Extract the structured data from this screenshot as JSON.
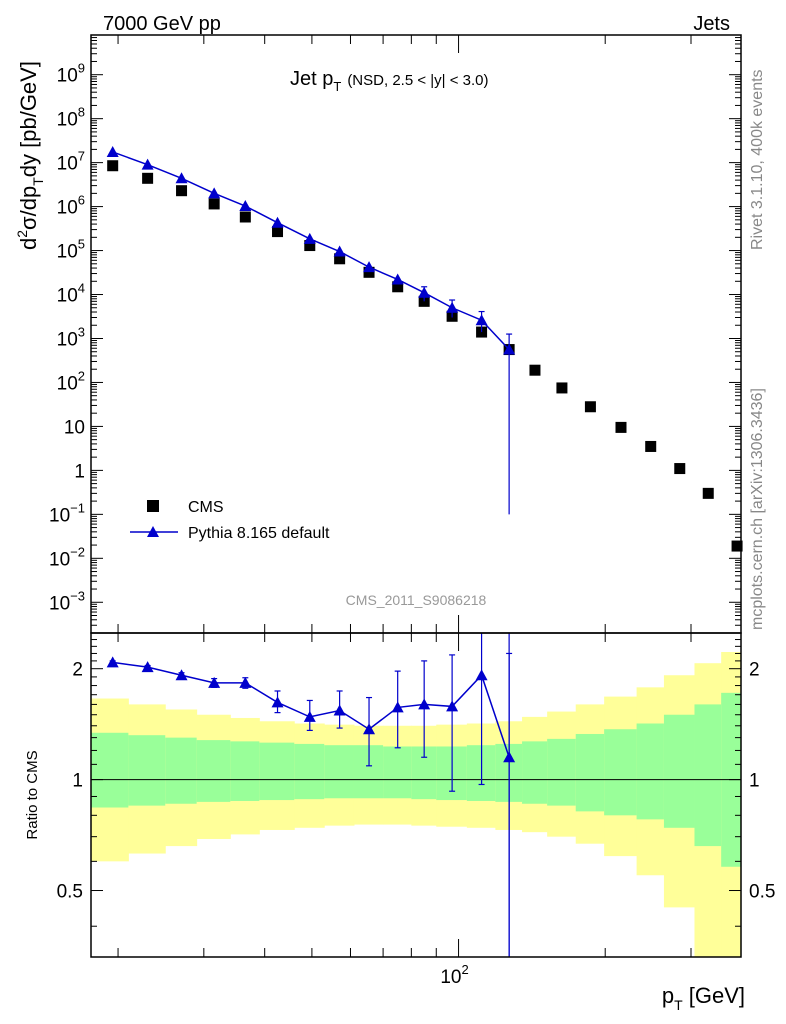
{
  "header": {
    "left": "7000 GeV pp",
    "right": "Jets"
  },
  "title": {
    "main": "Jet p",
    "main_sub": "T",
    "detail": "(NSD, 2.5 < |y| < 3.0)"
  },
  "side": {
    "rivet": "Rivet 3.1.10,  400k events",
    "site": "mcplots.cern.ch [arXiv:1306.3436]"
  },
  "watermark": "CMS_2011_S9086218",
  "ylabel": {
    "a": "d",
    "sup": "2",
    "b": "σ/dp",
    "sub": "T",
    "c": "dy [pb/GeV]"
  },
  "ratio_label": "Ratio to CMS",
  "xlabel": {
    "a": "p",
    "sub": "T",
    "b": " [GeV]"
  },
  "legend": {
    "cms": "CMS",
    "pythia": "Pythia 8.165 default"
  },
  "colors": {
    "mc": "#0000cc",
    "data": "#000000",
    "band_inner": "#99ff99",
    "band_outer": "#ffff99"
  },
  "chart_data": {
    "type": "scatter",
    "title": "Jet pT (NSD, 2.5 < |y| < 3.0)",
    "xlabel": "pT [GeV]",
    "ylabel": "d2σ/dpTdy [pb/GeV]",
    "xscale": "log",
    "yscale": "log",
    "xlim": [
      17.6,
      380
    ],
    "ylim": [
      0.0002,
      8000000000
    ],
    "x_ticks": [
      {
        "value": 100,
        "base": "10",
        "exp": "2"
      }
    ],
    "y_ticks": [
      {
        "value": 0.001,
        "base": "10",
        "exp": "−3"
      },
      {
        "value": 0.01,
        "base": "10",
        "exp": "−2"
      },
      {
        "value": 0.1,
        "base": "10",
        "exp": "−1"
      },
      {
        "value": 1,
        "base": "1",
        "exp": ""
      },
      {
        "value": 10,
        "base": "10",
        "exp": ""
      },
      {
        "value": 100,
        "base": "10",
        "exp": "2"
      },
      {
        "value": 1000,
        "base": "10",
        "exp": "3"
      },
      {
        "value": 10000,
        "base": "10",
        "exp": "4"
      },
      {
        "value": 100000,
        "base": "10",
        "exp": "5"
      },
      {
        "value": 1000000,
        "base": "10",
        "exp": "6"
      },
      {
        "value": 10000000,
        "base": "10",
        "exp": "7"
      },
      {
        "value": 100000000,
        "base": "10",
        "exp": "8"
      },
      {
        "value": 1000000000,
        "base": "10",
        "exp": "9"
      }
    ],
    "cms": {
      "name": "CMS",
      "x": [
        19.5,
        23,
        27,
        31.5,
        36.5,
        42.5,
        49.5,
        57,
        65.5,
        75,
        85,
        97,
        111.5,
        127,
        143.5,
        163,
        186.5,
        215.5,
        248,
        284.5,
        325.5,
        373
      ],
      "y": [
        8500000,
        4400000,
        2300000,
        1150000,
        580000,
        270000,
        130000,
        65000,
        32000,
        15000,
        7000,
        3200,
        1400,
        560,
        190,
        75,
        28,
        9.5,
        3.5,
        1.1,
        0.3,
        0.019
      ]
    },
    "pythia": {
      "name": "Pythia 8.165 default",
      "x": [
        19.5,
        23,
        27,
        31.5,
        36.5,
        42.5,
        49.5,
        57,
        65.5,
        75,
        85,
        97,
        111.5,
        127
      ],
      "y": [
        17500000,
        9000000,
        4400000,
        2000000,
        1030000,
        430000,
        185000,
        95000,
        42000,
        22000,
        11000,
        5000,
        2600,
        560
      ],
      "err_lo": [
        0,
        0,
        0,
        0,
        0,
        0,
        0,
        0,
        0,
        0,
        4000,
        2000,
        1200,
        559.9
      ],
      "err_hi": [
        0,
        0,
        0,
        0,
        0,
        0,
        0,
        0,
        0,
        0,
        4000,
        2500,
        1500,
        700
      ]
    },
    "ratio": {
      "ylabel": "Ratio to CMS",
      "ylim": [
        0.33,
        2.5
      ],
      "y_ticks": [
        {
          "value": 0.5,
          "label": "0.5"
        },
        {
          "value": 1,
          "label": "1"
        },
        {
          "value": 2,
          "label": "2"
        }
      ],
      "x": [
        19.5,
        23,
        27,
        31.5,
        36.5,
        42.5,
        49.5,
        57,
        65.5,
        75,
        85,
        97,
        111.5,
        127
      ],
      "y": [
        2.08,
        2.02,
        1.92,
        1.83,
        1.83,
        1.62,
        1.48,
        1.54,
        1.37,
        1.57,
        1.6,
        1.58,
        1.92,
        1.15
      ],
      "err_lo": [
        0.02,
        0.02,
        0.03,
        0.05,
        0.06,
        0.1,
        0.12,
        0.16,
        0.28,
        0.35,
        0.45,
        0.65,
        0.95,
        1.15
      ],
      "err_hi": [
        0.02,
        0.02,
        0.03,
        0.05,
        0.06,
        0.12,
        0.16,
        0.2,
        0.3,
        0.4,
        0.5,
        0.6,
        0.75,
        1.05
      ],
      "bins": [
        17.6,
        21,
        25,
        29,
        34,
        39,
        46,
        53,
        61,
        70,
        80,
        90,
        104,
        119,
        135,
        152,
        174,
        199,
        232,
        264,
        305,
        346,
        380
      ],
      "inner_lo": [
        0.84,
        0.85,
        0.86,
        0.87,
        0.875,
        0.88,
        0.885,
        0.89,
        0.89,
        0.89,
        0.885,
        0.88,
        0.875,
        0.87,
        0.86,
        0.85,
        0.82,
        0.8,
        0.78,
        0.74,
        0.66,
        0.58
      ],
      "inner_hi": [
        1.34,
        1.32,
        1.3,
        1.28,
        1.27,
        1.26,
        1.25,
        1.24,
        1.24,
        1.23,
        1.23,
        1.23,
        1.24,
        1.25,
        1.27,
        1.29,
        1.33,
        1.37,
        1.42,
        1.5,
        1.6,
        1.72
      ],
      "outer_lo": [
        0.6,
        0.63,
        0.66,
        0.69,
        0.71,
        0.73,
        0.74,
        0.75,
        0.755,
        0.755,
        0.75,
        0.745,
        0.74,
        0.73,
        0.72,
        0.7,
        0.67,
        0.62,
        0.55,
        0.45,
        0.33,
        0.33
      ],
      "outer_hi": [
        1.66,
        1.6,
        1.55,
        1.5,
        1.47,
        1.44,
        1.42,
        1.41,
        1.4,
        1.4,
        1.4,
        1.41,
        1.42,
        1.44,
        1.48,
        1.53,
        1.6,
        1.68,
        1.78,
        1.92,
        2.07,
        2.22
      ]
    }
  }
}
